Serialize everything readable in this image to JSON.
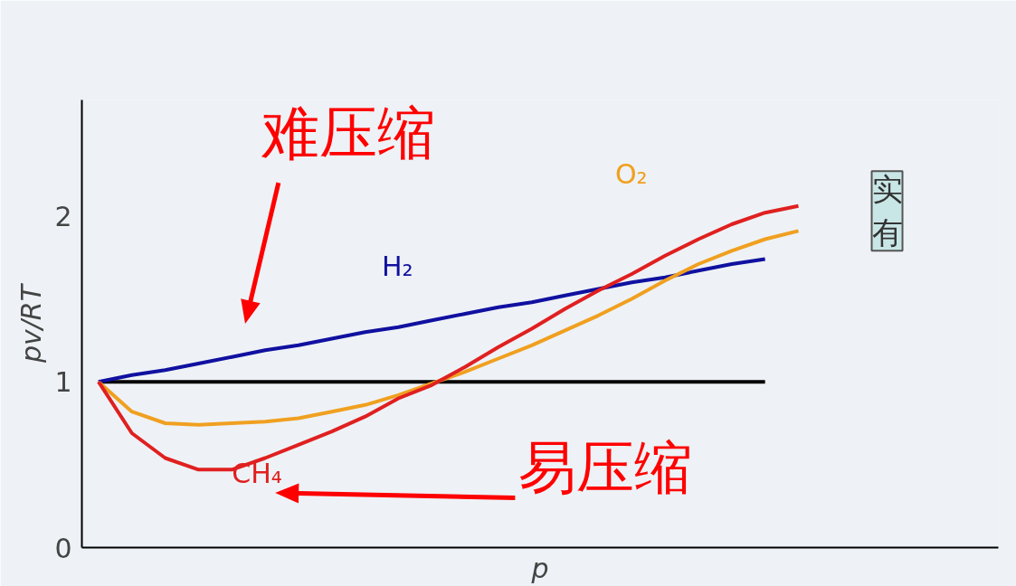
{
  "chart_data": {
    "type": "line",
    "xlabel": "p",
    "ylabel": "pv/RT",
    "ylim": [
      0,
      2.7
    ],
    "yticks": [
      0,
      1,
      2
    ],
    "grid": false,
    "marker": "none",
    "line_style": "solid",
    "categories": [
      null,
      null,
      null,
      null,
      null,
      null,
      null,
      null,
      null,
      null,
      null,
      null,
      null,
      null,
      null,
      null,
      null,
      null,
      null,
      null,
      null,
      null
    ],
    "series": [
      {
        "color": "#000000",
        "values": [
          1,
          1,
          1,
          1,
          1,
          1,
          1,
          1,
          1,
          1,
          1,
          1,
          1,
          1,
          1,
          1,
          1,
          1,
          1,
          1,
          1,
          null
        ]
      },
      {
        "name": "H₂",
        "color": "#1010a0",
        "values": [
          1.0,
          1.04,
          1.07,
          1.11,
          1.15,
          1.19,
          1.22,
          1.26,
          1.3,
          1.33,
          1.37,
          1.41,
          1.45,
          1.48,
          1.52,
          1.56,
          1.6,
          1.63,
          1.67,
          1.71,
          1.74,
          null
        ]
      },
      {
        "name": "O₂",
        "color": "#f0a020",
        "values": [
          1.0,
          0.82,
          0.75,
          0.74,
          0.75,
          0.76,
          0.78,
          0.82,
          0.86,
          0.92,
          0.99,
          1.06,
          1.14,
          1.22,
          1.31,
          1.4,
          1.5,
          1.61,
          1.71,
          1.79,
          1.86,
          1.91
        ]
      },
      {
        "name": "CH₄",
        "color": "#e02020",
        "values": [
          1.0,
          0.69,
          0.54,
          0.47,
          0.47,
          0.54,
          0.62,
          0.7,
          0.79,
          0.9,
          0.98,
          1.09,
          1.21,
          1.32,
          1.44,
          1.55,
          1.65,
          1.76,
          1.86,
          1.95,
          2.02,
          2.06
        ]
      }
    ],
    "annotations": [
      "难压缩",
      "易压缩",
      "实",
      "有"
    ]
  }
}
